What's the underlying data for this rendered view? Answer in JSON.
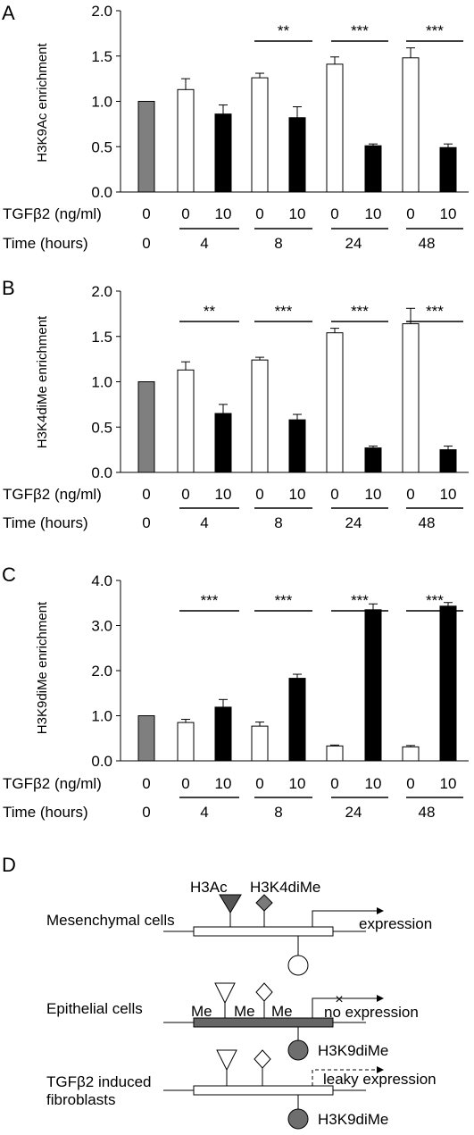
{
  "chart_data": [
    {
      "type": "bar",
      "panel_label": "A",
      "ylabel": "H3K9Ac enrichment",
      "ylim": [
        0,
        2.0
      ],
      "yticks": [
        "0.0",
        "0.5",
        "1.0",
        "1.5",
        "2.0"
      ],
      "tgf_label": "TGFβ2 (ng/ml)",
      "time_label": "Time (hours)",
      "tgf_values": [
        "0",
        "0",
        "10",
        "0",
        "10",
        "0",
        "10",
        "0",
        "10"
      ],
      "time_values": [
        "0",
        "4",
        "8",
        "24",
        "48"
      ],
      "values": [
        1.0,
        1.13,
        0.86,
        1.26,
        0.82,
        1.41,
        0.51,
        1.48,
        0.49
      ],
      "errors": [
        0.0,
        0.12,
        0.1,
        0.05,
        0.12,
        0.08,
        0.02,
        0.11,
        0.04
      ],
      "bar_kinds": [
        "control",
        "open",
        "filled",
        "open",
        "filled",
        "open",
        "filled",
        "open",
        "filled"
      ],
      "significance": [
        "",
        "**",
        "***",
        "***"
      ]
    },
    {
      "type": "bar",
      "panel_label": "B",
      "ylabel": "H3K4diMe enrichment",
      "ylim": [
        0,
        2.0
      ],
      "yticks": [
        "0.0",
        "0.5",
        "1.0",
        "1.5",
        "2.0"
      ],
      "tgf_label": "TGFβ2 (ng/ml)",
      "time_label": "Time (hours)",
      "tgf_values": [
        "0",
        "0",
        "10",
        "0",
        "10",
        "0",
        "10",
        "0",
        "10"
      ],
      "time_values": [
        "0",
        "4",
        "8",
        "24",
        "48"
      ],
      "values": [
        1.0,
        1.13,
        0.65,
        1.24,
        0.58,
        1.54,
        0.27,
        1.64,
        0.25
      ],
      "errors": [
        0.0,
        0.09,
        0.1,
        0.03,
        0.06,
        0.05,
        0.02,
        0.17,
        0.04
      ],
      "bar_kinds": [
        "control",
        "open",
        "filled",
        "open",
        "filled",
        "open",
        "filled",
        "open",
        "filled"
      ],
      "significance": [
        "**",
        "***",
        "***",
        "***"
      ]
    },
    {
      "type": "bar",
      "panel_label": "C",
      "ylabel": "H3K9diMe enrichment",
      "ylim": [
        0,
        4.0
      ],
      "yticks": [
        "0.0",
        "1.0",
        "2.0",
        "3.0",
        "4.0"
      ],
      "tgf_label": "TGFβ2 (ng/ml)",
      "time_label": "Time (hours)",
      "tgf_values": [
        "0",
        "0",
        "10",
        "0",
        "10",
        "0",
        "10",
        "0",
        "10"
      ],
      "time_values": [
        "0",
        "4",
        "8",
        "24",
        "48"
      ],
      "values": [
        1.0,
        0.85,
        1.19,
        0.77,
        1.83,
        0.33,
        3.35,
        0.31,
        3.43
      ],
      "errors": [
        0.0,
        0.07,
        0.17,
        0.09,
        0.09,
        0.02,
        0.13,
        0.03,
        0.08
      ],
      "bar_kinds": [
        "control",
        "open",
        "filled",
        "open",
        "filled",
        "open",
        "filled",
        "open",
        "filled"
      ],
      "significance": [
        "***",
        "***",
        "***",
        "***"
      ]
    }
  ],
  "diagram": {
    "panel_label": "D",
    "marks": {
      "h3ac": "H3Ac",
      "h3k4": "H3K4diMe"
    },
    "rows": {
      "mesenchymal": {
        "label": "Mesenchymal cells",
        "expression": "expression"
      },
      "epithelial": {
        "label": "Epithelial cells",
        "expression": "no expression",
        "me1": "Me",
        "me2": "Me",
        "me3": "Me",
        "mark": "H3K9diMe"
      },
      "fibroblast": {
        "label1": "TGFβ2  induced",
        "label2": "fibroblasts",
        "expression": "leaky expression",
        "mark": "H3K9diMe"
      }
    }
  },
  "colors": {
    "control": "#7f7f7f",
    "open": "#ffffff",
    "filled": "#000000",
    "gene_dark": "#666666",
    "circle_dark": "#6e6e6e",
    "mark_dark": "#555555",
    "mark_mid": "#7a7a7a"
  }
}
